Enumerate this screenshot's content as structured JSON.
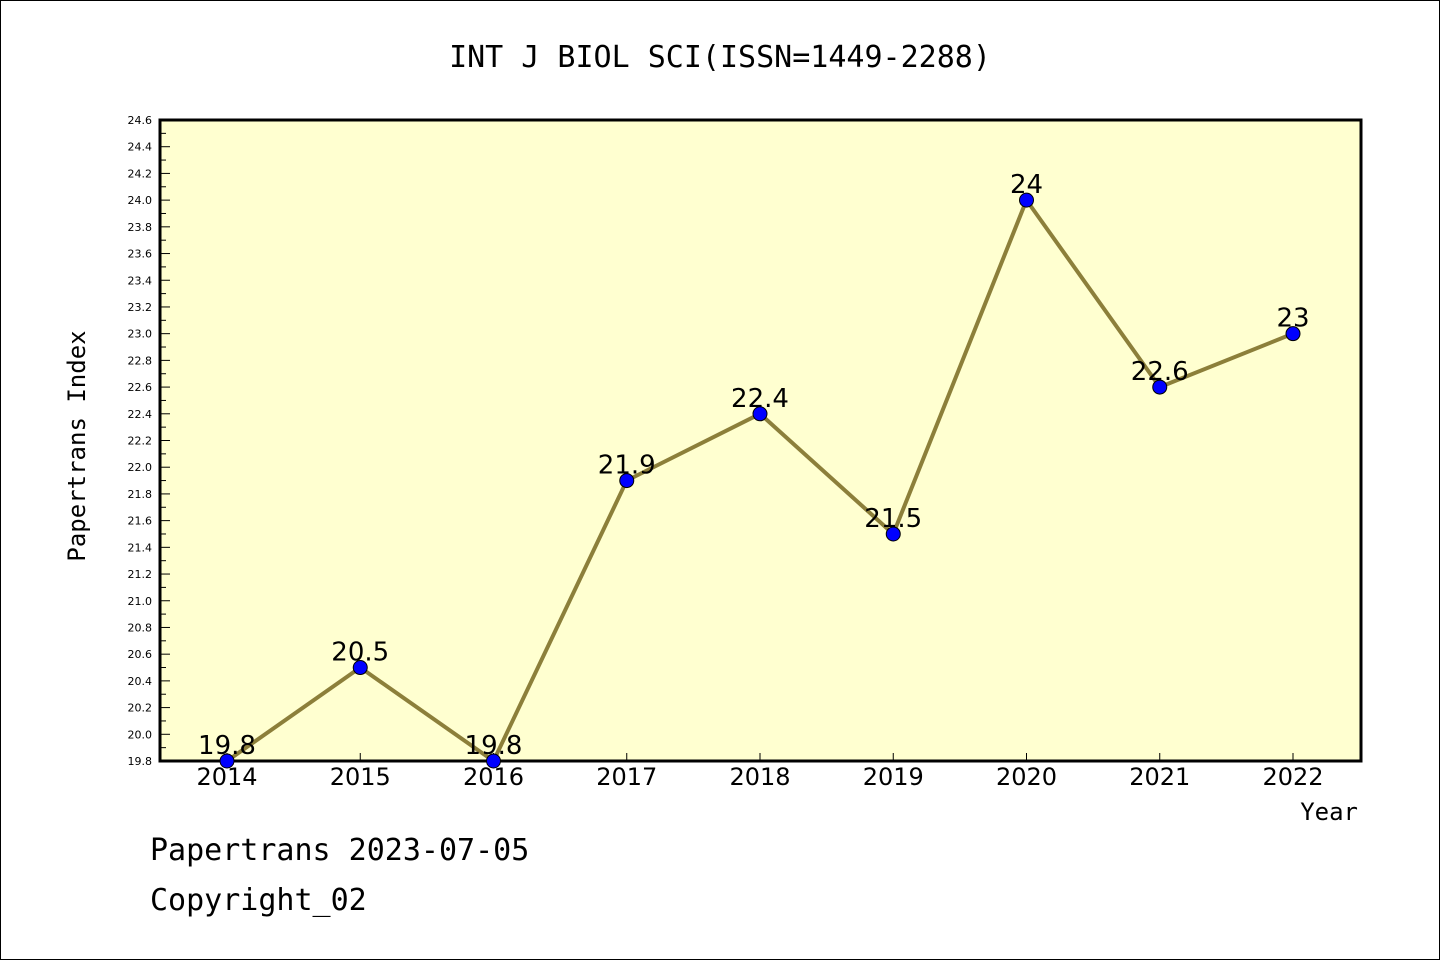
{
  "chart_data": {
    "type": "line",
    "title": "INT J BIOL SCI(ISSN=1449-2288)",
    "xlabel": "Year",
    "ylabel": "Papertrans Index",
    "categories": [
      "2014",
      "2015",
      "2016",
      "2017",
      "2018",
      "2019",
      "2020",
      "2021",
      "2022"
    ],
    "series": [
      {
        "values": [
          19.8,
          20.5,
          19.8,
          21.9,
          22.4,
          21.5,
          24,
          22.6,
          23
        ],
        "data_labels": [
          "19.8",
          "20.5",
          "19.8",
          "21.9",
          "22.4",
          "21.5",
          "24",
          "22.6",
          "23"
        ]
      }
    ],
    "ylim": [
      19.8,
      24.6
    ],
    "yticks": [
      "19.8",
      "20.0",
      "20.2",
      "20.4",
      "20.6",
      "20.8",
      "21.0",
      "21.2",
      "21.4",
      "21.6",
      "21.8",
      "22.0",
      "22.2",
      "22.4",
      "22.6",
      "22.8",
      "23.0",
      "23.2",
      "23.4",
      "23.6",
      "23.8",
      "24.0",
      "24.2",
      "24.4",
      "24.6"
    ],
    "grid": false,
    "colors": {
      "line": "#8c7f3a",
      "marker": "#0000ff",
      "plot_bg": "#ffffd0"
    }
  },
  "footer": {
    "line1": "Papertrans 2023-07-05",
    "line2": "Copyright_02"
  }
}
